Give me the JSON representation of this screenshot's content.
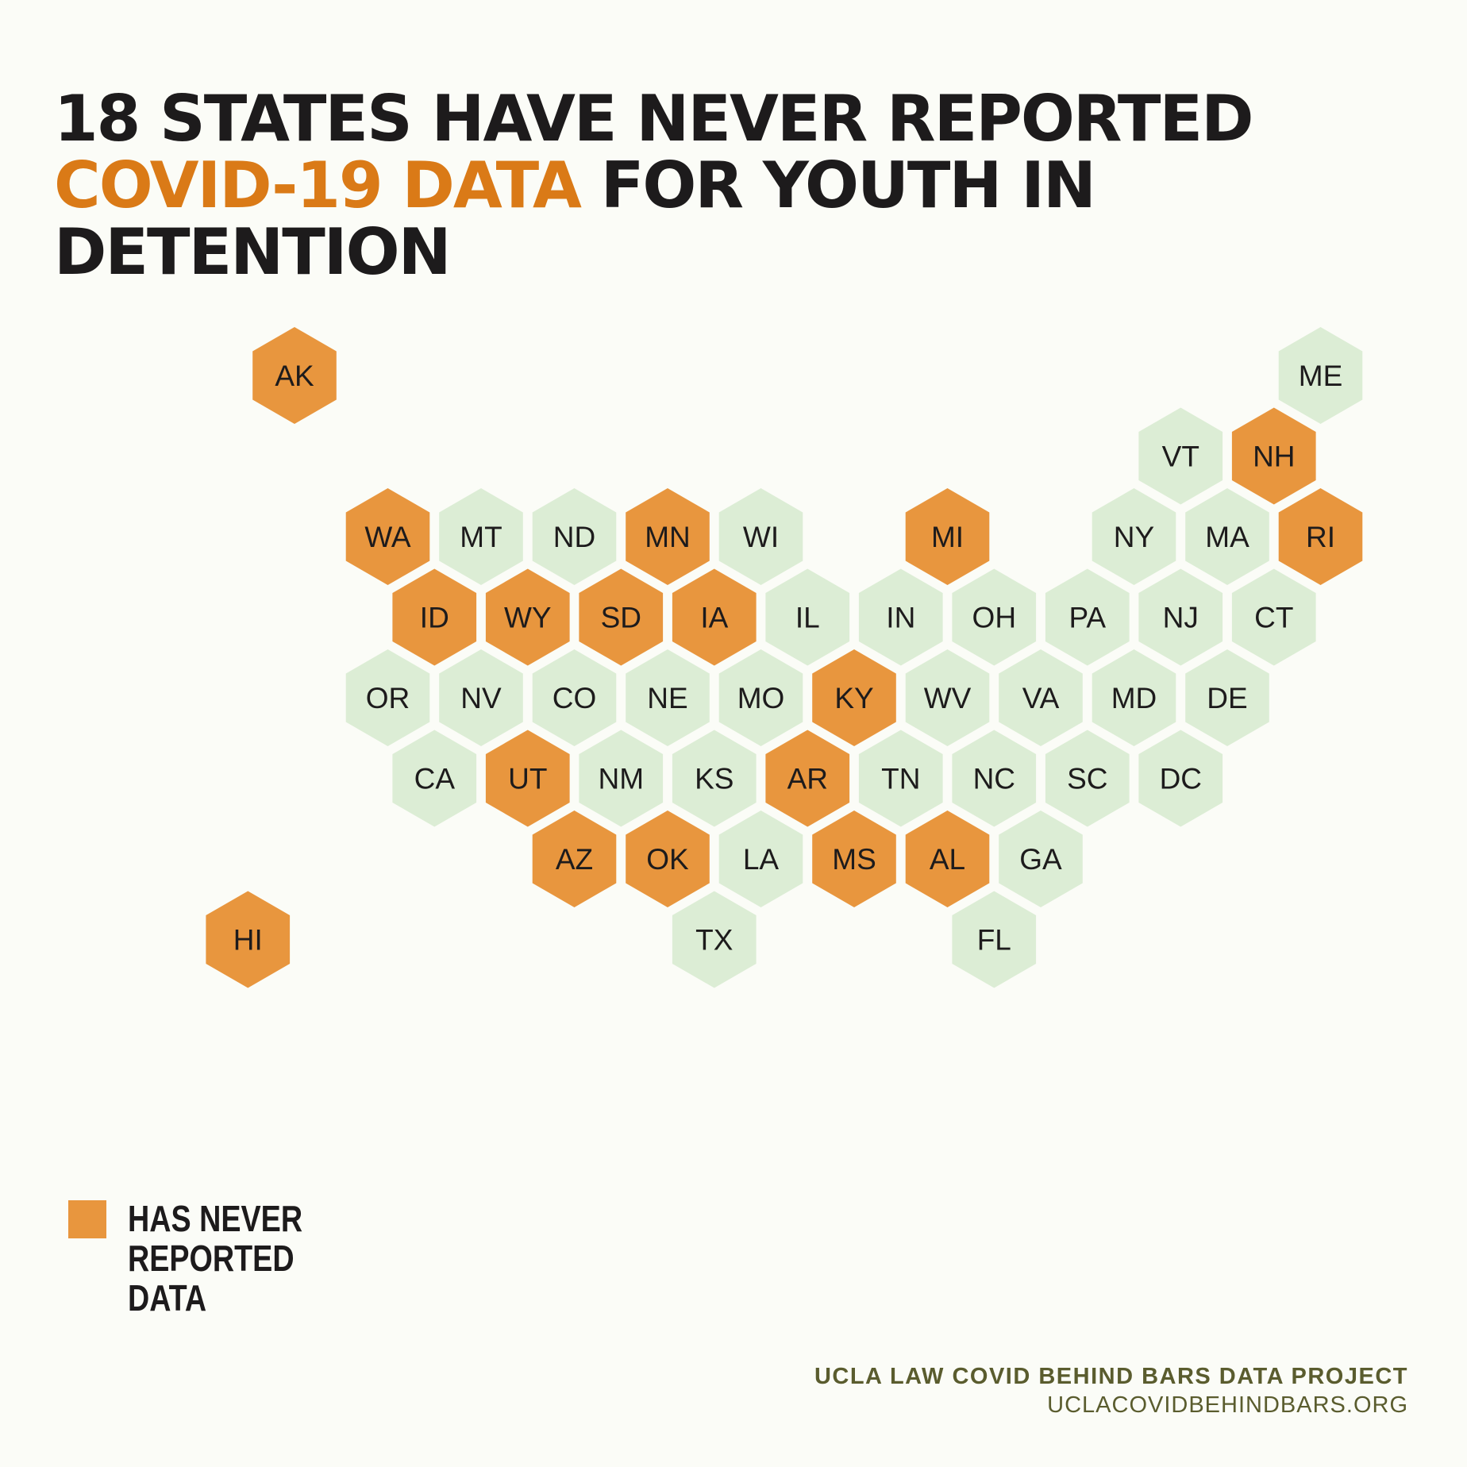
{
  "title": {
    "part1": "18 States Have Never Reported ",
    "highlight": "COVID-19 Data",
    "part2": " For Youth In Detention"
  },
  "colors": {
    "never_reported": "#e8963e",
    "reported": "#dcedd5",
    "highlight_text": "#da7a17"
  },
  "legend": {
    "label": "Has never reported data"
  },
  "footer": {
    "org": "UCLA LAW COVID BEHIND BARS DATA PROJECT",
    "url": "UCLACOVIDBEHINDBARS.ORG"
  },
  "states": [
    {
      "abbr": "AK",
      "col": 0,
      "row": 0,
      "never_reported": true
    },
    {
      "abbr": "ME",
      "col": 11,
      "row": 0,
      "never_reported": false
    },
    {
      "abbr": "VT",
      "col": 9.5,
      "row": 1,
      "never_reported": false
    },
    {
      "abbr": "NH",
      "col": 10.5,
      "row": 1,
      "never_reported": true
    },
    {
      "abbr": "WA",
      "col": 1,
      "row": 2,
      "never_reported": true
    },
    {
      "abbr": "MT",
      "col": 2,
      "row": 2,
      "never_reported": false
    },
    {
      "abbr": "ND",
      "col": 3,
      "row": 2,
      "never_reported": false
    },
    {
      "abbr": "MN",
      "col": 4,
      "row": 2,
      "never_reported": true
    },
    {
      "abbr": "WI",
      "col": 5,
      "row": 2,
      "never_reported": false
    },
    {
      "abbr": "MI",
      "col": 7,
      "row": 2,
      "never_reported": true
    },
    {
      "abbr": "NY",
      "col": 9,
      "row": 2,
      "never_reported": false
    },
    {
      "abbr": "MA",
      "col": 10,
      "row": 2,
      "never_reported": false
    },
    {
      "abbr": "RI",
      "col": 11,
      "row": 2,
      "never_reported": true
    },
    {
      "abbr": "ID",
      "col": 1.5,
      "row": 3,
      "never_reported": true
    },
    {
      "abbr": "WY",
      "col": 2.5,
      "row": 3,
      "never_reported": true
    },
    {
      "abbr": "SD",
      "col": 3.5,
      "row": 3,
      "never_reported": true
    },
    {
      "abbr": "IA",
      "col": 4.5,
      "row": 3,
      "never_reported": true
    },
    {
      "abbr": "IL",
      "col": 5.5,
      "row": 3,
      "never_reported": false
    },
    {
      "abbr": "IN",
      "col": 6.5,
      "row": 3,
      "never_reported": false
    },
    {
      "abbr": "OH",
      "col": 7.5,
      "row": 3,
      "never_reported": false
    },
    {
      "abbr": "PA",
      "col": 8.5,
      "row": 3,
      "never_reported": false
    },
    {
      "abbr": "NJ",
      "col": 9.5,
      "row": 3,
      "never_reported": false
    },
    {
      "abbr": "CT",
      "col": 10.5,
      "row": 3,
      "never_reported": false
    },
    {
      "abbr": "OR",
      "col": 1,
      "row": 4,
      "never_reported": false
    },
    {
      "abbr": "NV",
      "col": 2,
      "row": 4,
      "never_reported": false
    },
    {
      "abbr": "CO",
      "col": 3,
      "row": 4,
      "never_reported": false
    },
    {
      "abbr": "NE",
      "col": 4,
      "row": 4,
      "never_reported": false
    },
    {
      "abbr": "MO",
      "col": 5,
      "row": 4,
      "never_reported": false
    },
    {
      "abbr": "KY",
      "col": 6,
      "row": 4,
      "never_reported": true
    },
    {
      "abbr": "WV",
      "col": 7,
      "row": 4,
      "never_reported": false
    },
    {
      "abbr": "VA",
      "col": 8,
      "row": 4,
      "never_reported": false
    },
    {
      "abbr": "MD",
      "col": 9,
      "row": 4,
      "never_reported": false
    },
    {
      "abbr": "DE",
      "col": 10,
      "row": 4,
      "never_reported": false
    },
    {
      "abbr": "CA",
      "col": 1.5,
      "row": 5,
      "never_reported": false
    },
    {
      "abbr": "UT",
      "col": 2.5,
      "row": 5,
      "never_reported": true
    },
    {
      "abbr": "NM",
      "col": 3.5,
      "row": 5,
      "never_reported": false
    },
    {
      "abbr": "KS",
      "col": 4.5,
      "row": 5,
      "never_reported": false
    },
    {
      "abbr": "AR",
      "col": 5.5,
      "row": 5,
      "never_reported": true
    },
    {
      "abbr": "TN",
      "col": 6.5,
      "row": 5,
      "never_reported": false
    },
    {
      "abbr": "NC",
      "col": 7.5,
      "row": 5,
      "never_reported": false
    },
    {
      "abbr": "SC",
      "col": 8.5,
      "row": 5,
      "never_reported": false
    },
    {
      "abbr": "DC",
      "col": 9.5,
      "row": 5,
      "never_reported": false
    },
    {
      "abbr": "AZ",
      "col": 3,
      "row": 6,
      "never_reported": true
    },
    {
      "abbr": "OK",
      "col": 4,
      "row": 6,
      "never_reported": true
    },
    {
      "abbr": "LA",
      "col": 5,
      "row": 6,
      "never_reported": false
    },
    {
      "abbr": "MS",
      "col": 6,
      "row": 6,
      "never_reported": true
    },
    {
      "abbr": "AL",
      "col": 7,
      "row": 6,
      "never_reported": true
    },
    {
      "abbr": "GA",
      "col": 8,
      "row": 6,
      "never_reported": false
    },
    {
      "abbr": "HI",
      "col": -0.5,
      "row": 7,
      "never_reported": true
    },
    {
      "abbr": "TX",
      "col": 4.5,
      "row": 7,
      "never_reported": false
    },
    {
      "abbr": "FL",
      "col": 7.5,
      "row": 7,
      "never_reported": false
    }
  ]
}
